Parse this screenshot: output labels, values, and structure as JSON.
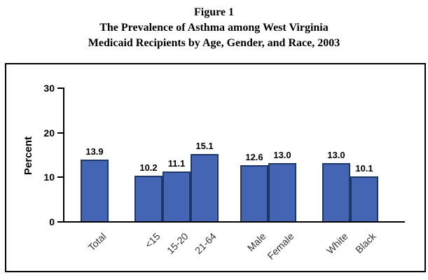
{
  "figure": {
    "title_line1": "Figure 1",
    "title_line2": "The Prevalence of Asthma among West Virginia",
    "title_line3": "Medicaid Recipients by Age, Gender, and Race, 2003"
  },
  "chart_data": {
    "type": "bar",
    "title": "Figure 1. The Prevalence of Asthma among West Virginia Medicaid Recipients by Age, Gender, and Race, 2003",
    "xlabel": "",
    "ylabel": "Percent",
    "ylim": [
      0,
      30
    ],
    "yticks": [
      0,
      10,
      20,
      30
    ],
    "grid": false,
    "legend": false,
    "value_labels_decimals": 1,
    "bar_color": "#4365B4",
    "bar_border_color": "#1D3868",
    "axis_color": "#000000",
    "groups": [
      {
        "name": "total",
        "categories": [
          "Total"
        ],
        "values": [
          13.9
        ]
      },
      {
        "name": "age",
        "categories": [
          "<15",
          "15-20",
          "21-64"
        ],
        "values": [
          10.2,
          11.1,
          15.1
        ]
      },
      {
        "name": "gender",
        "categories": [
          "Male",
          "Female"
        ],
        "values": [
          12.6,
          13.0
        ]
      },
      {
        "name": "race",
        "categories": [
          "White",
          "Black"
        ],
        "values": [
          13.0,
          10.1
        ]
      }
    ]
  }
}
